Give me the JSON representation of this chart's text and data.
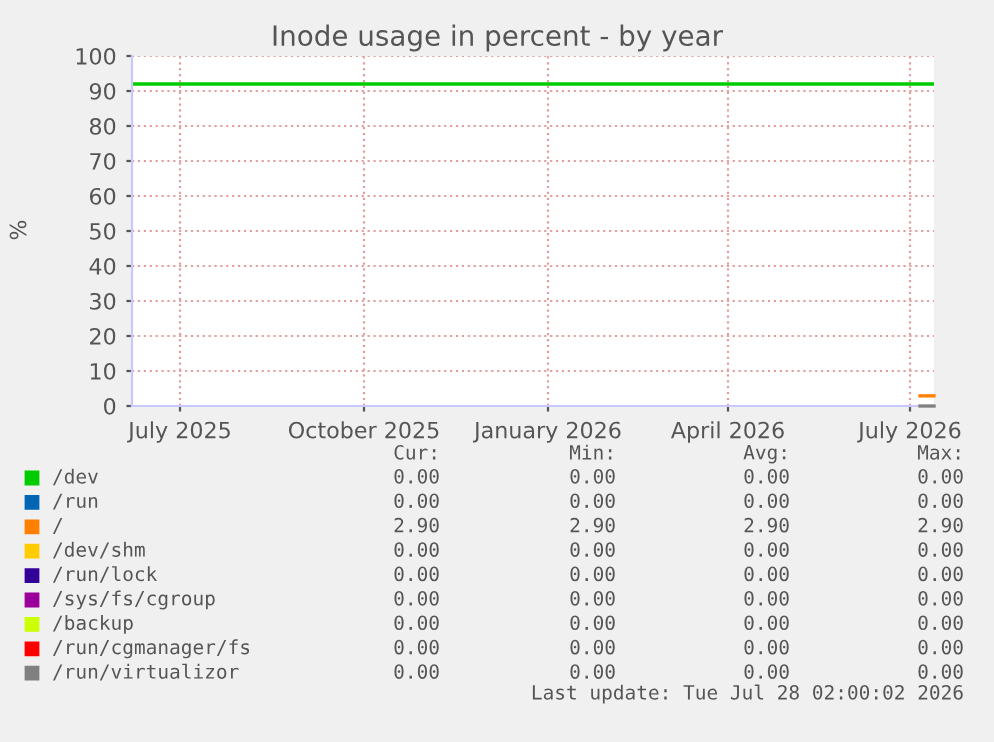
{
  "chart_data": {
    "type": "line",
    "title": "Inode usage in percent - by year",
    "ylabel": "%",
    "xlim": [
      "2025-06-22",
      "2026-07-28"
    ],
    "ylim": [
      0,
      100
    ],
    "xticks": [
      {
        "value": "2025-07-16",
        "label": "July 2025"
      },
      {
        "value": "2025-10-16",
        "label": "October 2025"
      },
      {
        "value": "2026-01-16",
        "label": "January 2026"
      },
      {
        "value": "2026-04-16",
        "label": "April 2026"
      },
      {
        "value": "2026-07-16",
        "label": "July 2026"
      }
    ],
    "yticks": [
      0,
      10,
      20,
      30,
      40,
      50,
      60,
      70,
      80,
      90,
      100
    ],
    "grid": true,
    "legend": "bottom",
    "ref_lines": [
      {
        "axis": "y",
        "value": 92,
        "color": "#00cc00"
      }
    ],
    "series": [
      {
        "name": "/dev",
        "color": "#00cc00"
      },
      {
        "name": "/run",
        "color": "#0066b3"
      },
      {
        "name": "/",
        "color": "#ff8000",
        "x": [
          "2026-07-21",
          "2026-07-28"
        ],
        "values": [
          2.9,
          2.9
        ]
      },
      {
        "name": "/dev/shm",
        "color": "#ffcc00"
      },
      {
        "name": "/run/lock",
        "color": "#330099"
      },
      {
        "name": "/sys/fs/cgroup",
        "color": "#990099"
      },
      {
        "name": "/backup",
        "color": "#ccff00"
      },
      {
        "name": "/run/cgmanager/fs",
        "color": "#ff0000"
      },
      {
        "name": "/run/virtualizor",
        "color": "#808080",
        "x": [
          "2026-07-21",
          "2026-07-28"
        ],
        "values": [
          0,
          0
        ]
      }
    ],
    "annotations": [
      "Cur:",
      "Min:",
      "Avg:",
      "Max:",
      "0.00",
      "0.00",
      "0.00",
      "0.00",
      "0.00",
      "0.00",
      "0.00",
      "0.00",
      "2.90",
      "2.90",
      "2.90",
      "2.90",
      "0.00",
      "0.00",
      "0.00",
      "0.00",
      "0.00",
      "0.00",
      "0.00",
      "0.00",
      "0.00",
      "0.00",
      "0.00",
      "0.00",
      "0.00",
      "0.00",
      "0.00",
      "0.00",
      "0.00",
      "0.00",
      "0.00",
      "0.00",
      "0.00",
      "0.00",
      "0.00",
      "0.00",
      "Last update: Tue Jul 28 02:00:02 2026"
    ]
  }
}
